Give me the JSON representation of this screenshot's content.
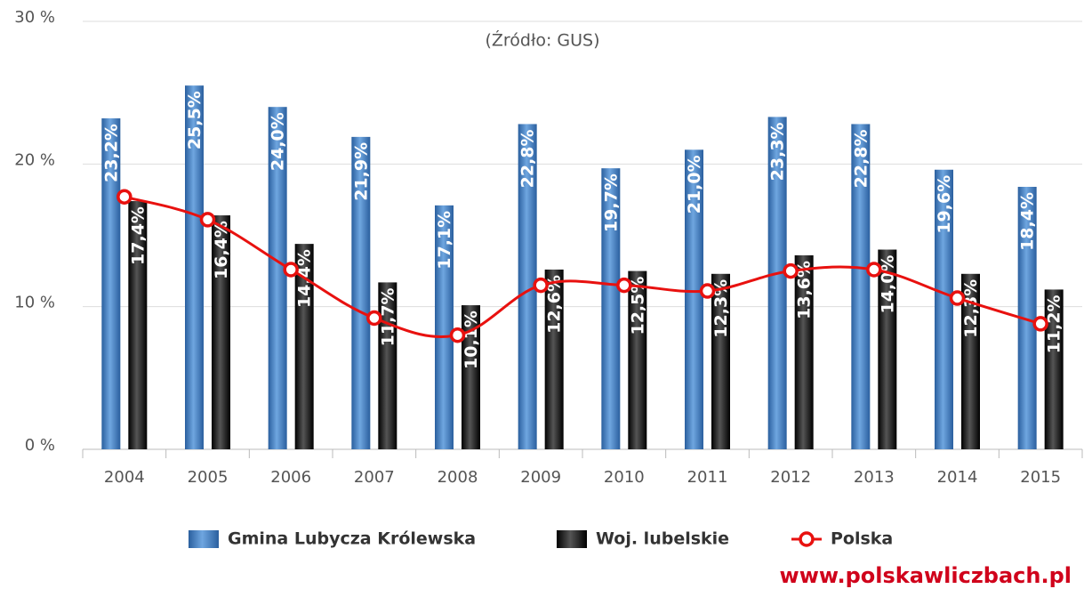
{
  "chart_data": {
    "type": "bar_line",
    "subtitle": "(Źródło: GUS)",
    "watermark": "www.polskawliczbach.pl",
    "categories": [
      "2004",
      "2005",
      "2006",
      "2007",
      "2008",
      "2009",
      "2010",
      "2011",
      "2012",
      "2013",
      "2014",
      "2015"
    ],
    "series": [
      {
        "name": "Gmina Lubycza Królewska",
        "color": "#3a78c0",
        "kind": "bar",
        "values": [
          23.2,
          25.5,
          24.0,
          21.9,
          17.1,
          22.8,
          19.7,
          21.0,
          23.3,
          22.8,
          19.6,
          18.4
        ],
        "value_labels": [
          "23,2%",
          "25,5%",
          "24,0%",
          "21,9%",
          "17,1%",
          "22,8%",
          "19,7%",
          "21,0%",
          "23,3%",
          "22,8%",
          "19,6%",
          "18,4%"
        ]
      },
      {
        "name": "Woj. lubelskie",
        "color": "#111111",
        "kind": "bar",
        "values": [
          17.4,
          16.4,
          14.4,
          11.7,
          10.1,
          12.6,
          12.5,
          12.3,
          13.6,
          14.0,
          12.3,
          11.2
        ],
        "value_labels": [
          "17,4%",
          "16,4%",
          "14,4%",
          "11,7%",
          "10,1%",
          "12,6%",
          "12,5%",
          "12,3%",
          "13,6%",
          "14,0%",
          "12,3%",
          "11,2%"
        ]
      },
      {
        "name": "Polska",
        "color": "#e8110f",
        "kind": "line",
        "values": [
          17.7,
          16.1,
          12.6,
          9.2,
          8.0,
          11.5,
          11.5,
          11.1,
          12.5,
          12.6,
          10.6,
          8.8
        ]
      }
    ],
    "ylim": [
      0,
      30
    ],
    "yticks": [
      {
        "value": 0,
        "label": "0 %"
      },
      {
        "value": 10,
        "label": "10 %"
      },
      {
        "value": 20,
        "label": "20 %"
      },
      {
        "value": 30,
        "label": "30 %"
      }
    ],
    "grid": true
  }
}
